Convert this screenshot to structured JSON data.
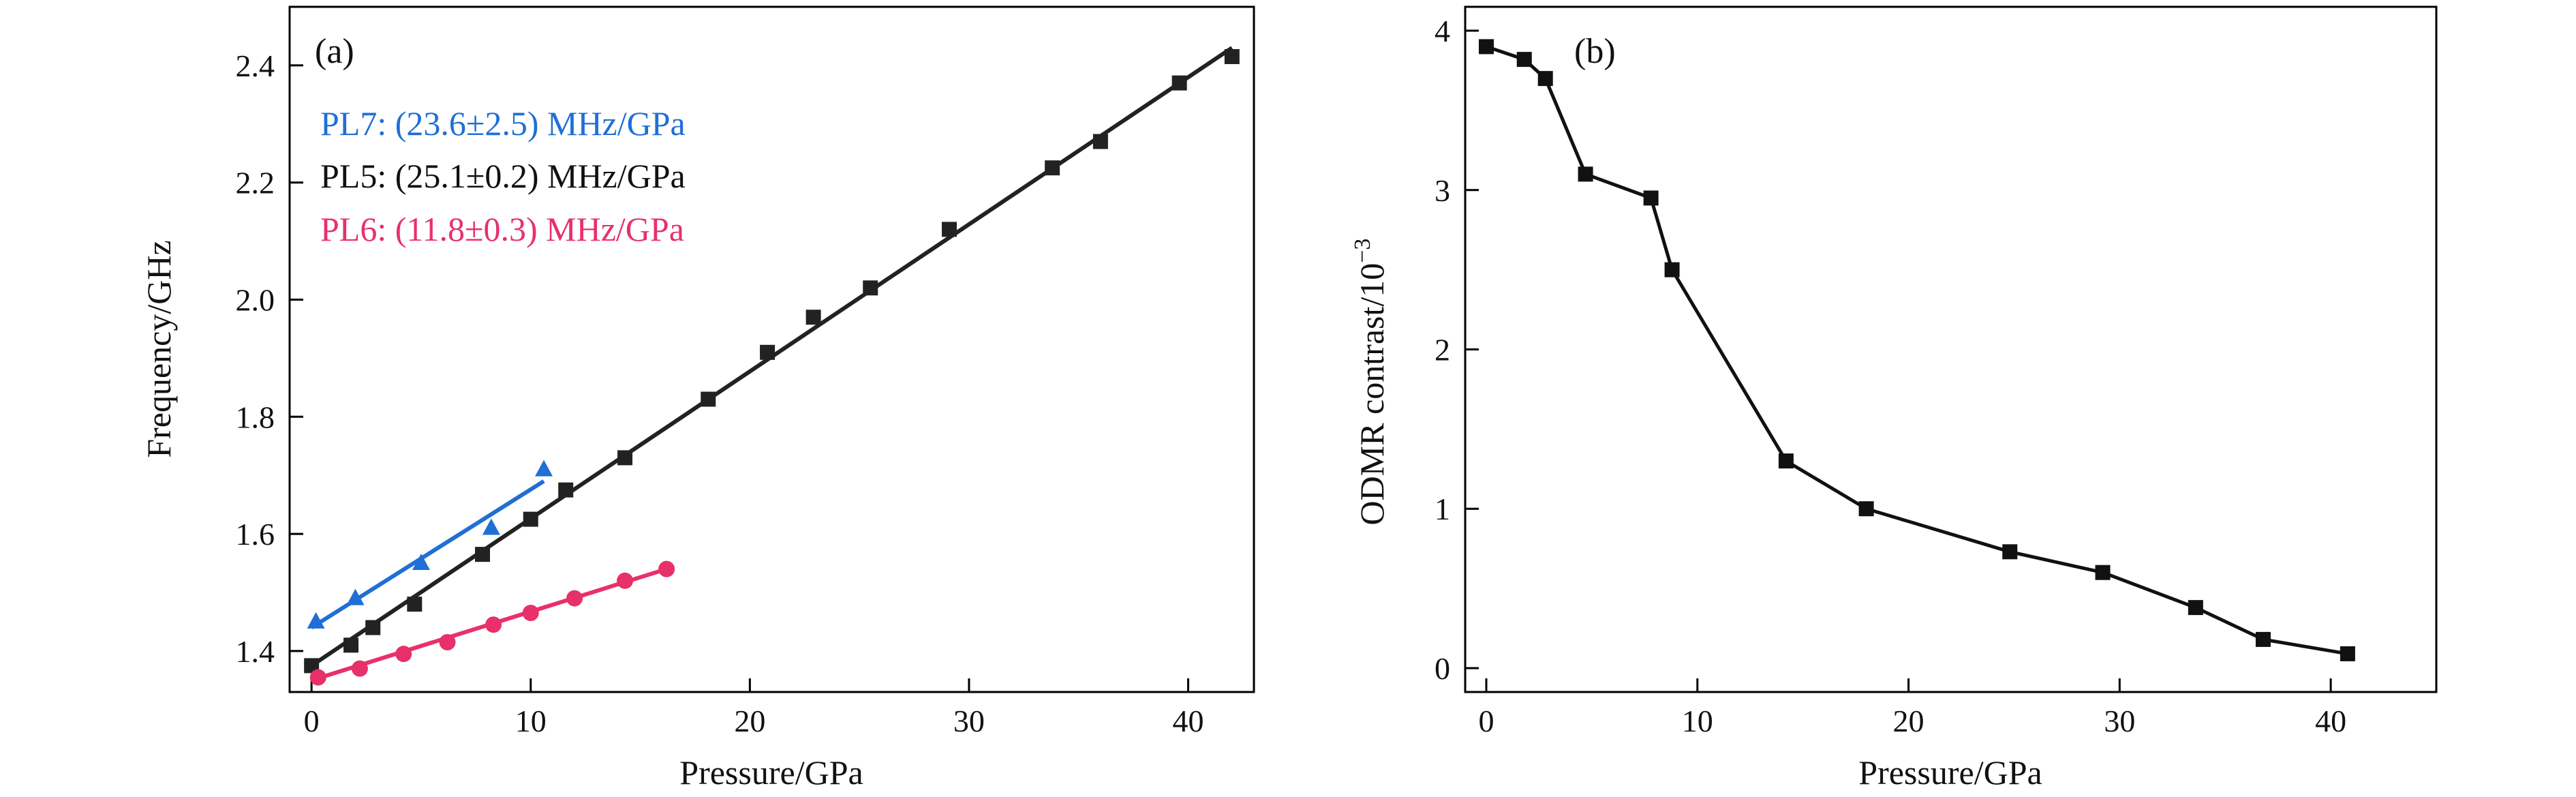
{
  "chart_data": [
    {
      "type": "scatter",
      "panel_label": "(a)",
      "xlabel": "Pressure/GPa",
      "ylabel": "Frequency/GHz",
      "xlim": [
        -1,
        43
      ],
      "ylim": [
        1.33,
        2.5
      ],
      "xticks": [
        0,
        10,
        20,
        30,
        40
      ],
      "yticks": [
        1.4,
        1.6,
        1.8,
        2.0,
        2.2,
        2.4
      ],
      "xtick_labels": [
        "0",
        "10",
        "20",
        "30",
        "40"
      ],
      "ytick_labels": [
        "1.4",
        "1.6",
        "1.8",
        "2.0",
        "2.2",
        "2.4"
      ],
      "legend_position": "upper-left",
      "series": [
        {
          "name": "PL7",
          "legend_label": "PL7: (23.6±2.5) MHz/GPa",
          "color": "#1f6fd6",
          "marker": "triangle",
          "x": [
            0.2,
            2.0,
            5.0,
            8.2,
            10.6
          ],
          "y": [
            1.45,
            1.49,
            1.55,
            1.61,
            1.71
          ],
          "fit": {
            "x": [
              0.0,
              10.6
            ],
            "y": [
              1.44,
              1.69
            ]
          }
        },
        {
          "name": "PL5",
          "legend_label": "PL5: (25.1±0.2) MHz/GPa",
          "color": "#222222",
          "marker": "square",
          "x": [
            0.0,
            1.8,
            2.8,
            4.7,
            7.8,
            10.0,
            11.6,
            14.3,
            18.1,
            20.8,
            22.9,
            25.5,
            29.1,
            33.8,
            36.0,
            39.6,
            42.0
          ],
          "y": [
            1.375,
            1.41,
            1.44,
            1.48,
            1.565,
            1.625,
            1.675,
            1.73,
            1.83,
            1.91,
            1.97,
            2.02,
            2.12,
            2.225,
            2.27,
            2.37,
            2.415
          ],
          "fit": {
            "x": [
              0.0,
              42.0
            ],
            "y": [
              1.375,
              2.43
            ]
          }
        },
        {
          "name": "PL6",
          "legend_label": "PL6: (11.8±0.3) MHz/GPa",
          "color": "#e8306a",
          "marker": "circle",
          "x": [
            0.3,
            2.2,
            4.2,
            6.2,
            8.3,
            10.0,
            12.0,
            14.3,
            16.2
          ],
          "y": [
            1.355,
            1.37,
            1.395,
            1.415,
            1.445,
            1.465,
            1.49,
            1.52,
            1.54
          ],
          "fit": {
            "x": [
              0.0,
              16.2
            ],
            "y": [
              1.35,
              1.54
            ]
          }
        }
      ]
    },
    {
      "type": "line",
      "panel_label": "(b)",
      "xlabel": "Pressure/GPa",
      "ylabel_main": "ODMR contrast/10",
      "ylabel_sup": "−3",
      "xlim": [
        -1,
        45
      ],
      "ylim": [
        -0.15,
        4.15
      ],
      "xticks": [
        0,
        10,
        20,
        30,
        40
      ],
      "yticks": [
        0,
        1,
        2,
        3,
        4
      ],
      "xtick_labels": [
        "0",
        "10",
        "20",
        "30",
        "40"
      ],
      "ytick_labels": [
        "0",
        "1",
        "2",
        "3",
        "4"
      ],
      "series": [
        {
          "color": "#111111",
          "marker": "square",
          "x": [
            0.0,
            1.8,
            2.8,
            4.7,
            7.8,
            8.8,
            14.2,
            18.0,
            24.8,
            29.2,
            33.6,
            36.8,
            40.8
          ],
          "y": [
            3.9,
            3.82,
            3.7,
            3.1,
            2.95,
            2.5,
            1.3,
            1.0,
            0.73,
            0.6,
            0.38,
            0.18,
            0.09
          ]
        }
      ]
    }
  ]
}
